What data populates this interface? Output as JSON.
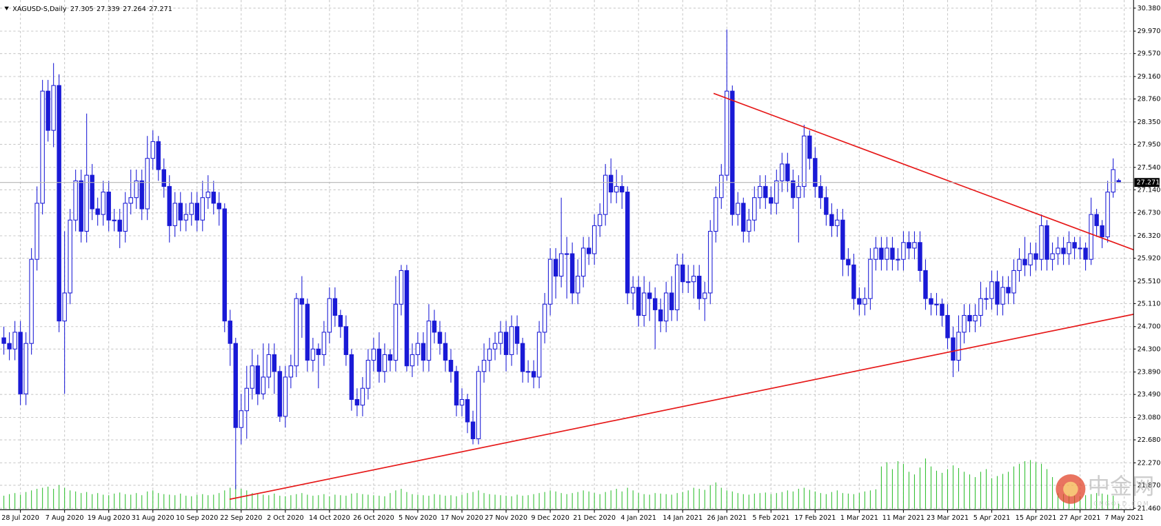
{
  "chart_data": {
    "type": "candlestick",
    "symbol": "XAGUSD-S,Daily",
    "bull_color": "#ffffff",
    "bear_color": "#1a1ad6",
    "edge_color": "#1a1ad6",
    "volume_color": "#2fbf2f",
    "price_line_color": "#b4b4b4",
    "xlim": [
      -0.7,
      204.7
    ],
    "ylim": [
      21.46,
      30.38
    ],
    "grid": true,
    "xticks": [
      {
        "value": 3,
        "label": "28 Jul 2020"
      },
      {
        "value": 11,
        "label": "7 Aug 2020"
      },
      {
        "value": 19,
        "label": "19 Aug 2020"
      },
      {
        "value": 27,
        "label": "31 Aug 2020"
      },
      {
        "value": 35,
        "label": "10 Sep 2020"
      },
      {
        "value": 43,
        "label": "22 Sep 2020"
      },
      {
        "value": 51,
        "label": "2 Oct 2020"
      },
      {
        "value": 59,
        "label": "14 Oct 2020"
      },
      {
        "value": 67,
        "label": "26 Oct 2020"
      },
      {
        "value": 75,
        "label": "5 Nov 2020"
      },
      {
        "value": 83,
        "label": "17 Nov 2020"
      },
      {
        "value": 91,
        "label": "27 Nov 2020"
      },
      {
        "value": 99,
        "label": "9 Dec 2020"
      },
      {
        "value": 107,
        "label": "21 Dec 2020"
      },
      {
        "value": 115,
        "label": "4 Jan 2021"
      },
      {
        "value": 123,
        "label": "14 Jan 2021"
      },
      {
        "value": 131,
        "label": "26 Jan 2021"
      },
      {
        "value": 139,
        "label": "5 Feb 2021"
      },
      {
        "value": 147,
        "label": "17 Feb 2021"
      },
      {
        "value": 155,
        "label": "1 Mar 2021"
      },
      {
        "value": 163,
        "label": "11 Mar 2021"
      },
      {
        "value": 171,
        "label": "23 Mar 2021"
      },
      {
        "value": 179,
        "label": "5 Apr 2021"
      },
      {
        "value": 187,
        "label": "15 Apr 2021"
      },
      {
        "value": 195,
        "label": "27 Apr 2021"
      },
      {
        "value": 203,
        "label": "7 May 2021"
      }
    ],
    "yticks": [
      {
        "value": 30.38,
        "label": "30.380"
      },
      {
        "value": 29.97,
        "label": "29.970"
      },
      {
        "value": 29.57,
        "label": "29.570"
      },
      {
        "value": 29.16,
        "label": "29.160"
      },
      {
        "value": 28.76,
        "label": "28.760"
      },
      {
        "value": 28.35,
        "label": "28.350"
      },
      {
        "value": 27.95,
        "label": "27.950"
      },
      {
        "value": 27.54,
        "label": "27.540"
      },
      {
        "value": 27.14,
        "label": "27.140"
      },
      {
        "value": 26.73,
        "label": "26.730"
      },
      {
        "value": 26.32,
        "label": "26.320"
      },
      {
        "value": 25.92,
        "label": "25.920"
      },
      {
        "value": 25.51,
        "label": "25.510"
      },
      {
        "value": 25.11,
        "label": "25.110"
      },
      {
        "value": 24.7,
        "label": "24.700"
      },
      {
        "value": 24.3,
        "label": "24.300"
      },
      {
        "value": 23.89,
        "label": "23.890"
      },
      {
        "value": 23.49,
        "label": "23.490"
      },
      {
        "value": 23.08,
        "label": "23.080"
      },
      {
        "value": 22.68,
        "label": "22.680"
      },
      {
        "value": 22.27,
        "label": "22.270"
      },
      {
        "value": 21.87,
        "label": "21.870"
      },
      {
        "value": 21.46,
        "label": "21.460"
      }
    ],
    "open": [
      24.5,
      24.4,
      24.3,
      24.6,
      23.5,
      24.4,
      25.9,
      26.9,
      28.9,
      28.2,
      29.0,
      24.8,
      25.3,
      26.6,
      27.3,
      26.4,
      27.4,
      26.8,
      26.7,
      27.1,
      26.6,
      26.6,
      26.4,
      26.9,
      27.0,
      27.3,
      26.8,
      27.7,
      28.0,
      27.5,
      27.2,
      26.5,
      26.9,
      26.6,
      26.7,
      26.9,
      26.6,
      27.0,
      27.1,
      26.9,
      26.8,
      24.8,
      24.4,
      22.9,
      23.2,
      23.6,
      24.0,
      23.5,
      23.8,
      24.2,
      23.9,
      23.1,
      23.8,
      24.0,
      25.2,
      25.1,
      24.1,
      24.3,
      24.2,
      24.6,
      25.2,
      24.9,
      24.7,
      24.2,
      23.4,
      23.3,
      23.6,
      24.1,
      24.3,
      23.9,
      24.2,
      24.1,
      25.1,
      25.7,
      24.0,
      24.2,
      24.4,
      24.1,
      24.8,
      24.6,
      24.4,
      24.1,
      23.9,
      23.3,
      23.4,
      23.0,
      22.7,
      23.9,
      24.1,
      24.3,
      24.4,
      24.6,
      24.2,
      24.7,
      24.4,
      23.9,
      23.9,
      23.8,
      24.6,
      25.1,
      25.9,
      25.6,
      26.0,
      26.0,
      25.3,
      25.6,
      26.1,
      26.0,
      26.5,
      26.7,
      27.4,
      27.1,
      27.2,
      27.1,
      25.3,
      25.4,
      24.9,
      25.3,
      25.2,
      25.0,
      24.8,
      25.3,
      25.0,
      25.8,
      25.5,
      25.5,
      25.6,
      25.2,
      25.3,
      26.4,
      27.0,
      27.4,
      28.9,
      26.7,
      26.9,
      26.4,
      26.6,
      27.0,
      27.2,
      27.0,
      26.9,
      27.3,
      27.6,
      27.3,
      27.0,
      27.2,
      28.1,
      27.7,
      27.2,
      27.0,
      26.7,
      26.5,
      26.6,
      25.9,
      25.8,
      25.2,
      25.1,
      25.2,
      25.9,
      26.1,
      25.9,
      26.1,
      25.9,
      25.9,
      26.2,
      26.1,
      26.2,
      25.7,
      25.2,
      25.1,
      25.1,
      24.9,
      24.5,
      24.1,
      24.6,
      24.9,
      24.8,
      24.9,
      25.2,
      25.2,
      25.5,
      25.1,
      25.4,
      25.3,
      25.7,
      25.9,
      25.8,
      26.0,
      25.9,
      26.5,
      25.9,
      26.0,
      26.1,
      26.0,
      26.2,
      26.1,
      26.1,
      25.9,
      26.7,
      26.5,
      26.3,
      27.1,
      27.305
    ],
    "high": [
      24.7,
      24.6,
      24.8,
      24.8,
      24.6,
      26.1,
      27.2,
      29.1,
      29.1,
      29.4,
      29.2,
      26.4,
      26.8,
      27.5,
      27.5,
      28.5,
      27.6,
      27.0,
      27.3,
      27.3,
      26.8,
      26.8,
      27.1,
      27.5,
      27.5,
      27.5,
      28.1,
      28.2,
      28.1,
      27.7,
      27.4,
      27.1,
      27.1,
      26.9,
      27.1,
      27.1,
      27.3,
      27.4,
      27.3,
      27.1,
      26.9,
      25.0,
      24.5,
      23.5,
      24.0,
      24.3,
      24.2,
      24.4,
      24.4,
      24.4,
      24.0,
      24.0,
      24.2,
      25.3,
      25.6,
      25.2,
      24.5,
      24.4,
      24.8,
      25.4,
      25.4,
      25.0,
      24.9,
      24.3,
      23.6,
      23.8,
      24.3,
      24.5,
      24.6,
      24.4,
      24.3,
      25.6,
      25.8,
      25.8,
      24.4,
      24.6,
      24.6,
      25.1,
      25.0,
      24.8,
      24.6,
      24.3,
      24.0,
      23.6,
      23.5,
      23.2,
      24.0,
      24.4,
      24.5,
      24.6,
      24.8,
      24.8,
      24.9,
      24.9,
      24.5,
      24.1,
      24.1,
      24.8,
      25.3,
      26.1,
      26.1,
      27.0,
      26.3,
      26.2,
      25.9,
      26.3,
      26.3,
      26.7,
      26.9,
      27.6,
      27.7,
      27.5,
      27.4,
      27.2,
      25.6,
      25.6,
      25.6,
      25.5,
      25.4,
      25.2,
      25.5,
      25.6,
      26.0,
      26.0,
      25.8,
      25.8,
      25.8,
      25.5,
      26.6,
      27.2,
      27.6,
      30.0,
      29.0,
      27.1,
      27.0,
      26.8,
      27.2,
      27.4,
      27.4,
      27.2,
      27.5,
      27.8,
      27.8,
      27.5,
      27.4,
      28.3,
      28.2,
      27.9,
      27.4,
      27.2,
      26.9,
      26.8,
      26.8,
      26.1,
      26.0,
      25.4,
      25.4,
      26.1,
      26.3,
      26.3,
      26.3,
      26.3,
      26.1,
      26.4,
      26.4,
      26.4,
      26.4,
      25.9,
      25.3,
      25.3,
      25.2,
      25.1,
      24.7,
      24.9,
      25.1,
      25.1,
      25.1,
      25.5,
      25.4,
      25.7,
      25.7,
      25.6,
      25.6,
      25.9,
      26.1,
      26.3,
      26.2,
      26.2,
      26.7,
      26.6,
      26.2,
      26.3,
      26.3,
      26.4,
      26.3,
      26.3,
      26.2,
      27.0,
      26.8,
      26.6,
      27.3,
      27.7,
      27.339
    ],
    "low": [
      24.2,
      24.1,
      24.1,
      23.3,
      23.3,
      24.2,
      25.7,
      26.7,
      28.0,
      27.9,
      24.6,
      23.5,
      25.1,
      26.4,
      26.2,
      26.2,
      26.6,
      26.5,
      26.5,
      26.4,
      26.4,
      26.1,
      26.2,
      26.7,
      26.8,
      26.6,
      26.6,
      27.5,
      27.3,
      27.0,
      26.2,
      26.3,
      26.4,
      26.4,
      26.5,
      26.4,
      26.4,
      26.8,
      26.7,
      26.5,
      24.6,
      24.0,
      21.8,
      22.6,
      22.7,
      23.4,
      23.3,
      23.4,
      23.6,
      23.5,
      23.0,
      22.9,
      23.6,
      23.8,
      24.5,
      23.9,
      23.9,
      23.6,
      24.0,
      24.4,
      24.7,
      24.5,
      24.0,
      23.2,
      23.1,
      23.1,
      23.4,
      23.9,
      23.7,
      23.7,
      23.9,
      23.9,
      24.9,
      23.9,
      23.8,
      24.0,
      23.9,
      23.9,
      24.4,
      24.2,
      23.9,
      23.7,
      23.1,
      23.1,
      22.8,
      22.6,
      22.6,
      23.7,
      23.9,
      24.1,
      24.2,
      23.9,
      24.0,
      24.2,
      23.7,
      23.7,
      23.6,
      23.6,
      24.4,
      24.9,
      25.2,
      25.4,
      25.2,
      25.1,
      25.1,
      25.4,
      25.8,
      25.8,
      26.3,
      26.5,
      26.9,
      26.9,
      26.8,
      25.1,
      25.0,
      24.7,
      24.7,
      24.8,
      24.3,
      24.6,
      24.6,
      24.8,
      24.8,
      25.3,
      25.3,
      25.2,
      25.0,
      24.8,
      25.1,
      26.2,
      26.8,
      27.3,
      26.5,
      26.5,
      26.2,
      26.2,
      26.4,
      26.8,
      26.8,
      26.7,
      26.7,
      27.1,
      27.1,
      26.8,
      26.2,
      27.0,
      27.5,
      27.0,
      26.8,
      26.5,
      26.3,
      26.3,
      25.6,
      25.6,
      25.0,
      24.9,
      24.9,
      25.0,
      25.7,
      25.7,
      25.7,
      25.7,
      25.7,
      25.7,
      25.9,
      25.9,
      25.5,
      25.0,
      24.9,
      24.9,
      24.7,
      24.3,
      23.8,
      23.9,
      24.4,
      24.6,
      24.6,
      24.7,
      25.0,
      25.0,
      24.9,
      24.9,
      25.1,
      25.1,
      25.5,
      25.6,
      25.6,
      25.7,
      25.7,
      25.7,
      25.7,
      25.8,
      25.8,
      25.8,
      25.9,
      25.9,
      25.7,
      25.8,
      26.3,
      26.1,
      26.2,
      27.0,
      27.264
    ],
    "close": [
      24.4,
      24.3,
      24.6,
      23.5,
      24.4,
      25.9,
      26.9,
      28.9,
      28.2,
      29.0,
      24.8,
      25.3,
      26.6,
      27.3,
      26.4,
      27.4,
      26.8,
      26.7,
      27.1,
      26.6,
      26.6,
      26.4,
      26.9,
      27.0,
      27.3,
      26.8,
      27.7,
      28.0,
      27.5,
      27.2,
      26.5,
      26.9,
      26.6,
      26.7,
      26.9,
      26.6,
      27.0,
      27.1,
      26.9,
      26.8,
      24.8,
      24.4,
      22.9,
      23.2,
      23.6,
      24.0,
      23.5,
      23.8,
      24.2,
      23.9,
      23.1,
      23.8,
      24.0,
      25.2,
      25.1,
      24.1,
      24.3,
      24.2,
      24.6,
      25.2,
      24.9,
      24.7,
      24.2,
      23.4,
      23.3,
      23.6,
      24.1,
      24.3,
      23.9,
      24.2,
      24.1,
      25.1,
      25.7,
      24.0,
      24.2,
      24.4,
      24.1,
      24.8,
      24.6,
      24.4,
      24.1,
      23.9,
      23.3,
      23.4,
      23.0,
      22.7,
      23.9,
      24.1,
      24.3,
      24.4,
      24.6,
      24.2,
      24.7,
      24.4,
      23.9,
      23.9,
      23.8,
      24.6,
      25.1,
      25.9,
      25.6,
      26.0,
      26.0,
      25.3,
      25.6,
      26.1,
      26.0,
      26.5,
      26.7,
      27.4,
      27.1,
      27.2,
      27.1,
      25.3,
      25.4,
      24.9,
      25.3,
      25.2,
      25.0,
      24.8,
      25.3,
      25.0,
      25.8,
      25.5,
      25.5,
      25.6,
      25.2,
      25.3,
      26.4,
      27.0,
      27.4,
      28.9,
      26.7,
      26.9,
      26.4,
      26.6,
      27.0,
      27.2,
      27.0,
      26.9,
      27.3,
      27.6,
      27.3,
      27.0,
      27.2,
      28.1,
      27.7,
      27.2,
      27.0,
      26.7,
      26.5,
      26.6,
      25.9,
      25.8,
      25.2,
      25.1,
      25.2,
      25.9,
      26.1,
      25.9,
      26.1,
      25.9,
      25.9,
      26.2,
      26.1,
      26.2,
      25.7,
      25.2,
      25.1,
      25.1,
      24.9,
      24.5,
      24.1,
      24.6,
      24.9,
      24.8,
      24.9,
      25.2,
      25.2,
      25.5,
      25.1,
      25.4,
      25.3,
      25.7,
      25.9,
      25.8,
      26.0,
      25.9,
      26.5,
      25.9,
      26.0,
      26.1,
      26.0,
      26.2,
      26.1,
      26.1,
      25.9,
      26.7,
      26.5,
      26.3,
      27.1,
      27.5,
      27.271
    ],
    "volume": [
      25,
      28,
      30,
      27,
      32,
      35,
      38,
      40,
      42,
      38,
      45,
      40,
      35,
      33,
      30,
      32,
      28,
      30,
      27,
      26,
      29,
      31,
      28,
      27,
      30,
      26,
      33,
      35,
      30,
      28,
      27,
      26,
      29,
      25,
      24,
      27,
      28,
      26,
      27,
      30,
      35,
      40,
      45,
      38,
      35,
      30,
      28,
      27,
      26,
      29,
      25,
      24,
      26,
      28,
      30,
      27,
      25,
      26,
      28,
      24,
      27,
      26,
      25,
      29,
      30,
      28,
      27,
      26,
      25,
      24,
      30,
      35,
      38,
      32,
      28,
      27,
      26,
      25,
      28,
      27,
      25,
      26,
      24,
      27,
      30,
      32,
      35,
      30,
      28,
      27,
      26,
      25,
      24,
      27,
      25,
      26,
      28,
      30,
      32,
      35,
      33,
      30,
      28,
      30,
      32,
      35,
      33,
      30,
      28,
      32,
      35,
      38,
      33,
      40,
      35,
      30,
      28,
      27,
      30,
      29,
      28,
      27,
      30,
      32,
      35,
      40,
      38,
      36,
      45,
      50,
      40,
      35,
      33,
      30,
      28,
      27,
      29,
      30,
      31,
      28,
      30,
      32,
      35,
      33,
      38,
      40,
      36,
      33,
      30,
      28,
      32,
      35,
      30,
      29,
      28,
      30,
      33,
      35,
      37,
      80,
      88,
      75,
      90,
      85,
      70,
      65,
      78,
      95,
      80,
      72,
      68,
      75,
      82,
      77,
      70,
      65,
      60,
      70,
      75,
      58,
      62,
      66,
      70,
      80,
      85,
      90,
      92,
      88,
      85,
      75,
      60,
      30,
      28,
      27,
      25,
      24,
      26,
      28,
      30,
      29,
      27,
      25,
      10
    ],
    "trendlines": [
      {
        "color": "#e61919",
        "x": [
          128.6,
          204.7
        ],
        "y": [
          28.86,
          26.07
        ]
      },
      {
        "color": "#e61919",
        "x": [
          40.9,
          204.7
        ],
        "y": [
          21.62,
          24.92
        ]
      }
    ],
    "watermark": {
      "name": "中金网",
      "site": "CNGOLD.COM"
    }
  }
}
